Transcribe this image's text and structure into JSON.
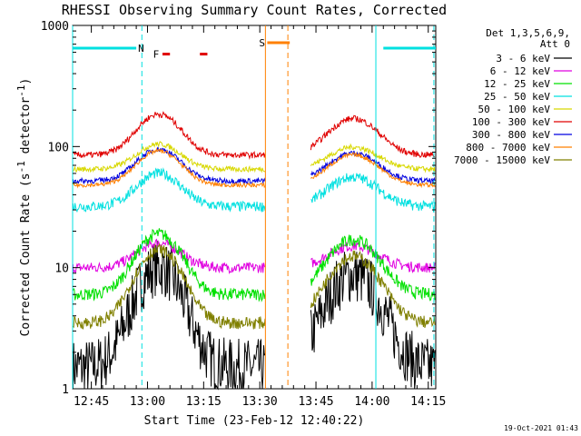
{
  "chart_data": {
    "type": "line",
    "title": "RHESSI Observing Summary Count Rates, Corrected",
    "xlabel": "Start Time (23-Feb-12 12:40:22)",
    "ylabel_main": "Corrected Count Rate (s",
    "ylabel_sup1": "-1",
    "ylabel_mid": " detector",
    "ylabel_sup2": "-1",
    "ylabel_end": ")",
    "footer": "19-Oct-2021 01:43",
    "x_range_minutes": [
      0,
      97
    ],
    "x_ticks": [
      {
        "t": 5,
        "label": "12:45"
      },
      {
        "t": 20,
        "label": "13:00"
      },
      {
        "t": 35,
        "label": "13:15"
      },
      {
        "t": 50,
        "label": "13:30"
      },
      {
        "t": 65,
        "label": "13:45"
      },
      {
        "t": 80,
        "label": "14:00"
      },
      {
        "t": 95,
        "label": "14:15"
      }
    ],
    "y_log": true,
    "y_range": [
      1,
      1000
    ],
    "y_ticks": [
      {
        "v": 1,
        "label": "1"
      },
      {
        "v": 10,
        "label": "10"
      },
      {
        "v": 100,
        "label": "100"
      },
      {
        "v": 1000,
        "label": "1000"
      }
    ],
    "legend_header": [
      "Det 1,3,5,6,9,",
      "Att 0"
    ],
    "legend_position": "right",
    "gap_minutes": [
      51.5,
      63.5
    ],
    "series": [
      {
        "name": "3 - 6 keV",
        "color": "#000000",
        "base": 1.5,
        "peak": 10,
        "noise": 0.55
      },
      {
        "name": "6 - 12 keV",
        "color": "#e000e0",
        "base": 10,
        "peak": 16,
        "noise": 0.1
      },
      {
        "name": "12 - 25 keV",
        "color": "#00e000",
        "base": 6,
        "peak": 19,
        "noise": 0.12
      },
      {
        "name": "25 - 50 keV",
        "color": "#00e0e0",
        "base": 32,
        "peak": 60,
        "noise": 0.1
      },
      {
        "name": "50 - 100 keV",
        "color": "#d8d800",
        "base": 65,
        "peak": 105,
        "noise": 0.05
      },
      {
        "name": "100 - 300 keV",
        "color": "#e00000",
        "base": 85,
        "peak": 185,
        "noise": 0.06
      },
      {
        "name": "300 - 800 keV",
        "color": "#0000e0",
        "base": 52,
        "peak": 95,
        "noise": 0.05
      },
      {
        "name": "800 - 7000 keV",
        "color": "#ff8000",
        "base": 48,
        "peak": 92,
        "noise": 0.04
      },
      {
        "name": "7000 - 15000 keV",
        "color": "#808000",
        "base": 3.5,
        "peak": 14,
        "noise": 0.12
      }
    ],
    "annotations": [
      {
        "label": "N",
        "color": "#00e0e0"
      },
      {
        "label": "F",
        "color": "#e00000"
      },
      {
        "label": "S",
        "color": "#ff8000"
      }
    ],
    "night_bars": [
      {
        "from": 0,
        "to": 17,
        "y": 650
      },
      {
        "from": 83,
        "to": 97,
        "y": 650
      }
    ],
    "flare_bars": [
      {
        "from": 24,
        "to": 26,
        "y": 580
      },
      {
        "from": 34,
        "to": 36,
        "y": 580
      }
    ],
    "saa_bar": {
      "from": 52,
      "to": 58,
      "y": 720
    },
    "night_lines": [
      0,
      18.5,
      81,
      96.5
    ],
    "saa_lines": [
      51.5,
      57.5
    ]
  }
}
